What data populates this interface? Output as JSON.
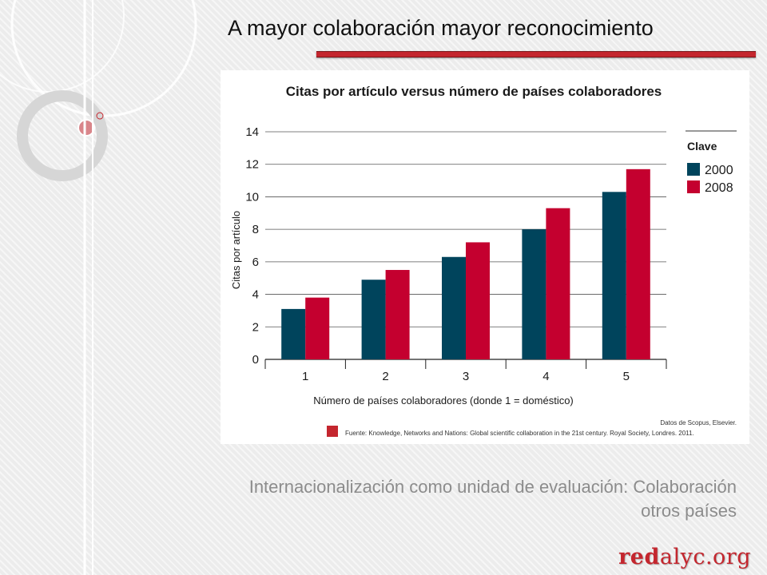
{
  "slide": {
    "title": "A mayor colaboración  mayor reconocimiento",
    "caption_line1": "Internacionalización como unidad de evaluación:   Colaboración",
    "caption_line2": "otros países",
    "brand_bold": "red",
    "brand_rest": "alyc.org"
  },
  "colors": {
    "accent": "#c4262e",
    "series_2000": "#00445c",
    "series_2008": "#c4002f",
    "caption": "#8c8c8c"
  },
  "chart_data": {
    "type": "bar",
    "title": "Citas por artículo versus número de países colaboradores",
    "xlabel": "Número de países colaboradores (donde 1 = doméstico)",
    "ylabel": "Citas por artículo",
    "categories": [
      "1",
      "2",
      "3",
      "4",
      "5"
    ],
    "series": [
      {
        "name": "2000",
        "values": [
          3.1,
          4.9,
          6.3,
          8.0,
          10.3
        ]
      },
      {
        "name": "2008",
        "values": [
          3.8,
          5.5,
          7.2,
          9.3,
          11.7
        ]
      }
    ],
    "ylim": [
      0,
      14
    ],
    "yticks": [
      0,
      2,
      4,
      6,
      8,
      10,
      12,
      14
    ],
    "grid": true,
    "legend_title": "Clave",
    "legend_position": "right",
    "source_credit": "Datos de Scopus, Elsevier.",
    "source_note": "Fuente: Knowledge, Networks and Nations: Global scientific collaboration in the 21st century. Royal Society, Londres. 2011."
  }
}
